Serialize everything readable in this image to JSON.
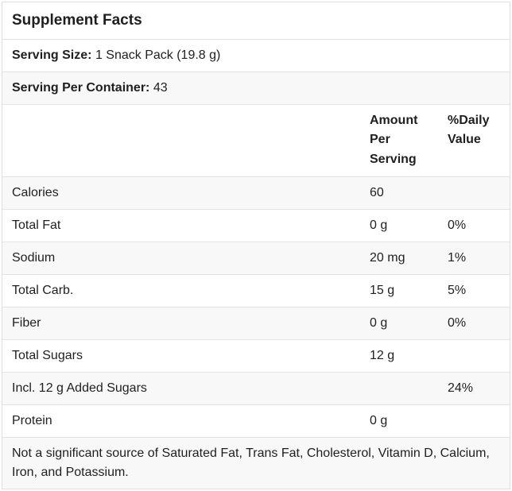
{
  "label": {
    "title": "Supplement Facts",
    "serving_size": {
      "label": "Serving Size:",
      "value": "1 Snack Pack (19.8 g)"
    },
    "servings_per_container": {
      "label": "Serving Per Container:",
      "value": "43"
    },
    "columns": {
      "amount": "Amount Per Serving",
      "daily_value": "%Daily Value"
    },
    "rows": [
      {
        "label": "Calories",
        "amount": "60",
        "daily_value": ""
      },
      {
        "label": "Total Fat",
        "amount": "0 g",
        "daily_value": "0%"
      },
      {
        "label": "Sodium",
        "amount": "20 mg",
        "daily_value": "1%"
      },
      {
        "label": "Total Carb.",
        "amount": "15 g",
        "daily_value": "5%"
      },
      {
        "label": "Fiber",
        "amount": "0 g",
        "daily_value": "0%"
      },
      {
        "label": "Total Sugars",
        "amount": "12 g",
        "daily_value": ""
      },
      {
        "label": "Incl. 12 g Added Sugars",
        "amount": "",
        "daily_value": "24%"
      },
      {
        "label": "Protein",
        "amount": "0 g",
        "daily_value": ""
      }
    ],
    "footnote": "Not a significant source of Saturated Fat, Trans Fat, Cholesterol, Vitamin D, Calcium, Iron, and Potassium."
  },
  "colors": {
    "background": "#ffffff",
    "stripe": "#f8f8f8",
    "row_border": "#e3e3e3",
    "outer_border": "#dfdfdf",
    "text": "#1f1f1f"
  }
}
